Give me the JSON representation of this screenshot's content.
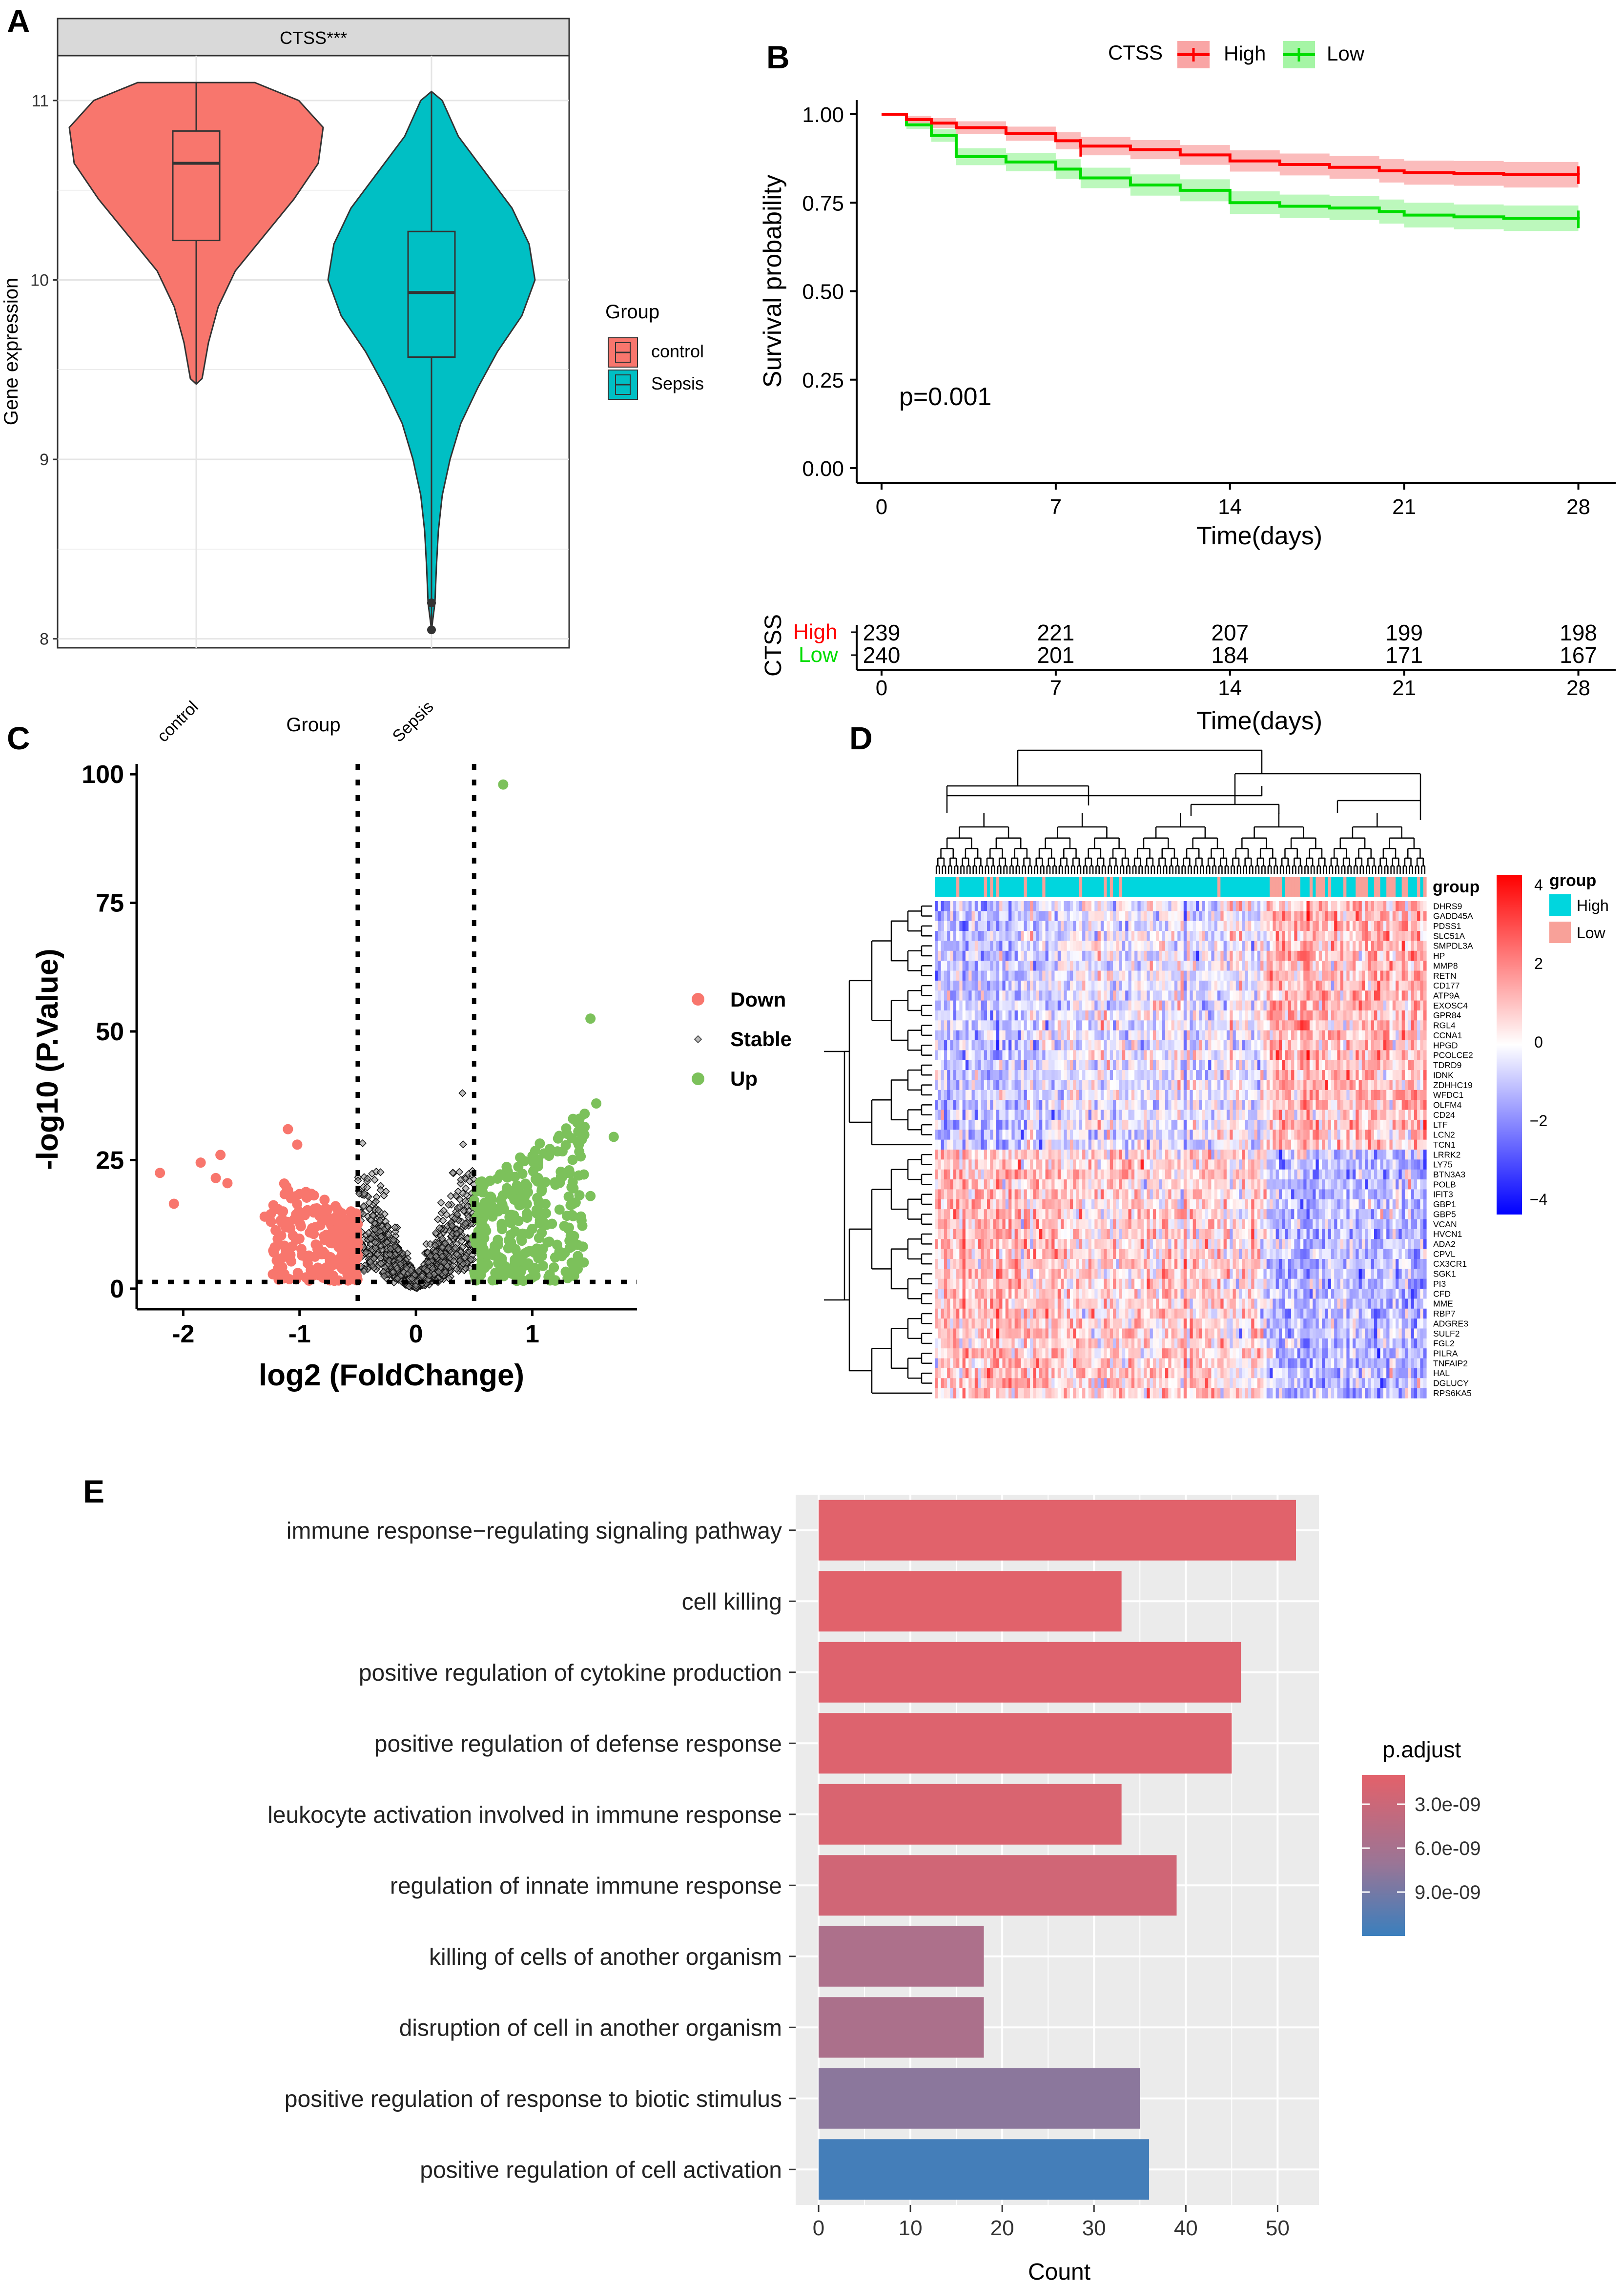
{
  "panel_labels": [
    "A",
    "B",
    "C",
    "D",
    "E"
  ],
  "colors": {
    "control": "#F8766D",
    "sepsis": "#00BFC4",
    "high": "#ff0000",
    "low": "#00dd00",
    "high_ci": "#f9a5a5",
    "low_ci": "#a5f5a5",
    "down": "#F8766D",
    "up": "#7CC15B",
    "stable": "#000000",
    "heat_high": "#ff0000",
    "heat_mid": "#ffffff",
    "heat_low": "#0000ff",
    "group_high": "#00D6DE",
    "group_low": "#F8A199",
    "bar_top": "#e3616a",
    "bar_bottom": "#3a7fbd"
  },
  "chart_data": [
    {
      "panel": "A",
      "type": "violin",
      "strip_title": "CTSS***",
      "xlabel": "Group",
      "ylabel": "Gene expression",
      "categories": [
        "control",
        "Sepsis"
      ],
      "yticks": [
        8,
        9,
        10,
        11
      ],
      "ylim": [
        7.95,
        11.25
      ],
      "boxes": [
        {
          "name": "control",
          "min": 9.42,
          "q1": 10.22,
          "median": 10.65,
          "q3": 10.83,
          "max": 11.1
        },
        {
          "name": "Sepsis",
          "min": 8.05,
          "q1": 9.57,
          "median": 9.93,
          "q3": 10.27,
          "max": 11.05,
          "outliers": [
            8.05,
            8.2
          ]
        }
      ],
      "legend": {
        "title": "Group",
        "items": [
          "control",
          "Sepsis"
        ]
      }
    },
    {
      "panel": "B",
      "type": "line",
      "subtype": "kaplan-meier",
      "legend": {
        "title": "CTSS",
        "items": [
          "High",
          "Low"
        ]
      },
      "xlabel": "Time(days)",
      "ylabel": "Survival probability",
      "xticks": [
        0,
        7,
        14,
        21,
        28
      ],
      "yticks": [
        "0.00",
        "0.25",
        "0.50",
        "0.75",
        "1.00"
      ],
      "xlim": [
        -1,
        29.5
      ],
      "ylim": [
        0,
        1.04
      ],
      "annotation": "p=0.001",
      "series": [
        {
          "name": "High",
          "x": [
            0,
            1,
            2,
            3,
            5,
            7,
            8,
            10,
            12,
            14,
            16,
            18,
            20,
            21,
            23,
            25,
            28
          ],
          "y": [
            1.0,
            0.985,
            0.975,
            0.962,
            0.945,
            0.925,
            0.91,
            0.9,
            0.885,
            0.868,
            0.858,
            0.85,
            0.84,
            0.835,
            0.833,
            0.829,
            0.828
          ],
          "ci_half": [
            0.0,
            0.01,
            0.014,
            0.018,
            0.02,
            0.024,
            0.026,
            0.027,
            0.028,
            0.03,
            0.031,
            0.032,
            0.033,
            0.034,
            0.035,
            0.036,
            0.036
          ]
        },
        {
          "name": "Low",
          "x": [
            0,
            1,
            2,
            3,
            5,
            7,
            8,
            10,
            12,
            14,
            16,
            18,
            20,
            21,
            23,
            25,
            28
          ],
          "y": [
            1.0,
            0.97,
            0.94,
            0.88,
            0.865,
            0.845,
            0.82,
            0.8,
            0.785,
            0.75,
            0.74,
            0.735,
            0.725,
            0.715,
            0.71,
            0.706,
            0.703
          ],
          "ci_half": [
            0.0,
            0.012,
            0.018,
            0.024,
            0.026,
            0.028,
            0.029,
            0.03,
            0.031,
            0.032,
            0.033,
            0.034,
            0.034,
            0.035,
            0.035,
            0.036,
            0.036
          ]
        }
      ],
      "risk_table": {
        "title": "CTSS",
        "xlabel": "Time(days)",
        "times": [
          0,
          7,
          14,
          21,
          28
        ],
        "rows": [
          {
            "name": "High",
            "values": [
              "239",
              "221",
              "207",
              "199",
              "198"
            ]
          },
          {
            "name": "Low",
            "values": [
              "240",
              "201",
              "184",
              "171",
              "167"
            ]
          }
        ]
      }
    },
    {
      "panel": "C",
      "type": "scatter",
      "subtype": "volcano",
      "xlabel": "log2 (FoldChange)",
      "ylabel": "-log10 (P.Value)",
      "xticks": [
        -2,
        -1,
        0,
        1
      ],
      "yticks": [
        0,
        25,
        50,
        75,
        100
      ],
      "xlim": [
        -2.4,
        1.9
      ],
      "ylim": [
        -4,
        102
      ],
      "thresholds": {
        "x": [
          -0.5,
          0.5
        ],
        "y": 1.3
      },
      "legend": [
        "Down",
        "Stable",
        "Up"
      ],
      "highlighted_points": {
        "Down": [
          [
            -2.2,
            22.5
          ],
          [
            -2.08,
            16.5
          ],
          [
            -1.85,
            24.5
          ],
          [
            -1.72,
            21.5
          ],
          [
            -1.68,
            26
          ],
          [
            -1.62,
            20.5
          ],
          [
            -1.1,
            31
          ],
          [
            -1.02,
            28
          ],
          [
            -1.3,
            14
          ]
        ],
        "Up": [
          [
            0.75,
            98
          ],
          [
            1.5,
            52.5
          ],
          [
            1.55,
            36
          ],
          [
            1.7,
            29.5
          ],
          [
            1.45,
            34
          ],
          [
            1.35,
            33
          ],
          [
            1.4,
            22
          ],
          [
            1.5,
            18
          ]
        ],
        "Stable": [
          [
            0.4,
            38
          ],
          [
            0.3,
            18
          ],
          [
            -0.35,
            9
          ]
        ]
      }
    },
    {
      "panel": "D",
      "type": "heatmap",
      "rows": [
        "DHRS9",
        "GADD45A",
        "PDSS1",
        "SLC51A",
        "SMPDL3A",
        "HP",
        "MMP8",
        "RETN",
        "CD177",
        "ATP9A",
        "EXOSC4",
        "GPR84",
        "RGL4",
        "CCNA1",
        "HPGD",
        "PCOLCE2",
        "TDRD9",
        "IDNK",
        "ZDHHC19",
        "WFDC1",
        "OLFM4",
        "CD24",
        "LTF",
        "LCN2",
        "TCN1",
        "LRRK2",
        "LY75",
        "BTN3A3",
        "POLB",
        "IFIT3",
        "GBP1",
        "GBP5",
        "VCAN",
        "HVCN1",
        "ADA2",
        "CPVL",
        "CX3CR1",
        "SGK1",
        "PI3",
        "CFD",
        "MME",
        "RBP7",
        "ADGRE3",
        "SULF2",
        "FGL2",
        "PILRA",
        "TNFAIP2",
        "HAL",
        "DGLUCY",
        "RPS6KA5"
      ],
      "annotation_title": "group",
      "scale_ticks": [
        "4",
        "2",
        "0",
        "−2",
        "−4"
      ],
      "group_legend": {
        "title": "group",
        "items": [
          "High",
          "Low"
        ]
      }
    },
    {
      "panel": "E",
      "type": "bar",
      "orientation": "horizontal",
      "xlabel": "Count",
      "xticks": [
        0,
        10,
        20,
        30,
        40,
        50
      ],
      "xlim": [
        -2.5,
        54.5
      ],
      "categories": [
        "immune response−regulating signaling pathway",
        "cell killing",
        "positive regulation of cytokine production",
        "positive regulation of defense response",
        "leukocyte activation involved in immune response",
        "regulation of innate immune response",
        "killing of cells of another organism",
        "disruption of cell in another organism",
        "positive regulation of response to biotic stimulus",
        "positive regulation of cell activation"
      ],
      "values": [
        52,
        33,
        46,
        45,
        33,
        39,
        18,
        18,
        35,
        36
      ],
      "p_adjust": [
        1.2e-09,
        1.2e-09,
        1.4e-09,
        1.5e-09,
        1.8e-09,
        2.6e-09,
        5.5e-09,
        5.6e-09,
        7.8e-09,
        1.15e-08
      ],
      "legend": {
        "title": "p.adjust",
        "ticks": [
          "3.0e-09",
          "6.0e-09",
          "9.0e-09"
        ],
        "tick_values": [
          3e-09,
          6e-09,
          9e-09
        ],
        "range": [
          1e-09,
          1.2e-08
        ]
      }
    }
  ]
}
